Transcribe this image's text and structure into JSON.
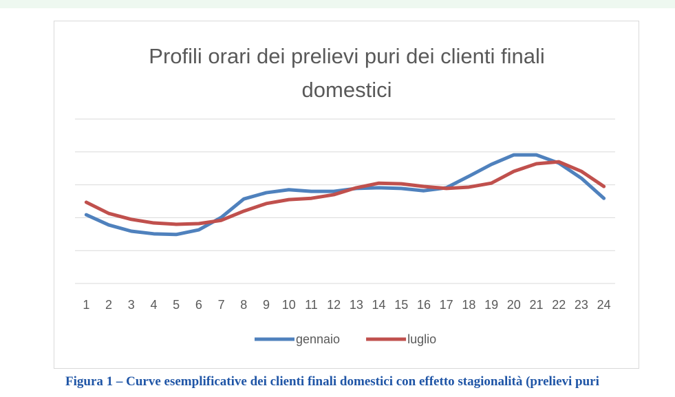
{
  "chart_data": {
    "type": "line",
    "title": "Profili orari dei prelievi puri dei clienti finali domestici",
    "categories": [
      "1",
      "2",
      "3",
      "4",
      "5",
      "6",
      "7",
      "8",
      "9",
      "10",
      "11",
      "12",
      "13",
      "14",
      "15",
      "16",
      "17",
      "18",
      "19",
      "20",
      "21",
      "22",
      "23",
      "24"
    ],
    "series": [
      {
        "name": "gennaio",
        "color": "#4f81bd",
        "values": [
          2.09,
          1.78,
          1.59,
          1.51,
          1.49,
          1.63,
          2.01,
          2.57,
          2.76,
          2.85,
          2.8,
          2.8,
          2.89,
          2.91,
          2.89,
          2.82,
          2.91,
          3.26,
          3.62,
          3.91,
          3.91,
          3.66,
          3.2,
          2.59
        ]
      },
      {
        "name": "luglio",
        "color": "#c0504d",
        "values": [
          2.47,
          2.13,
          1.95,
          1.84,
          1.8,
          1.82,
          1.92,
          2.2,
          2.43,
          2.55,
          2.59,
          2.7,
          2.91,
          3.05,
          3.03,
          2.95,
          2.89,
          2.93,
          3.05,
          3.41,
          3.64,
          3.7,
          3.41,
          2.95
        ]
      }
    ],
    "ylim": [
      0,
      5
    ],
    "yticks": [
      0,
      1,
      2,
      3,
      4,
      5
    ],
    "grid": true,
    "legend": "bottom"
  },
  "caption": "Figura 1 – Curve esemplificative dei clienti finali domestici con effetto stagionalità (prelievi puri"
}
